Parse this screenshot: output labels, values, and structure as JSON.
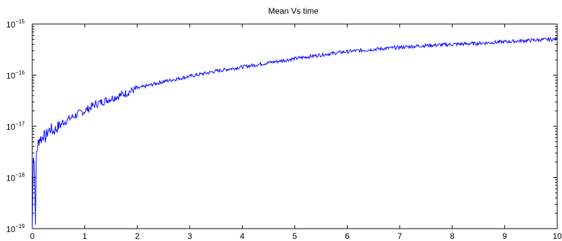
{
  "chart_data": {
    "type": "line",
    "title": "Mean Vs time",
    "xlabel": "",
    "ylabel": "",
    "y_scale": "log",
    "xlim": [
      0,
      10
    ],
    "ylim": [
      1e-19,
      1e-15
    ],
    "grid": false,
    "x_ticks": [
      0,
      1,
      2,
      3,
      4,
      5,
      6,
      7,
      8,
      9,
      10
    ],
    "x_tick_labels": [
      "0",
      "1",
      "2",
      "3",
      "4",
      "5",
      "6",
      "7",
      "8",
      "9",
      "10"
    ],
    "y_ticks": [
      1e-19,
      1e-18,
      1e-17,
      1e-16,
      1e-15
    ],
    "y_tick_labels": [
      {
        "base": "10",
        "exponent": "−19"
      },
      {
        "base": "10",
        "exponent": "−18"
      },
      {
        "base": "10",
        "exponent": "−17"
      },
      {
        "base": "10",
        "exponent": "−16"
      },
      {
        "base": "10",
        "exponent": "−15"
      }
    ],
    "series": [
      {
        "color": "#0000ff",
        "x": [
          0.0,
          0.02,
          0.04,
          0.06,
          0.08,
          0.1,
          0.12,
          0.15,
          0.18,
          0.2,
          0.25,
          0.3,
          0.35,
          0.4,
          0.5,
          0.6,
          0.7,
          0.8,
          0.9,
          1.0,
          1.2,
          1.5,
          1.8,
          2.0,
          2.5,
          3.0,
          3.5,
          4.0,
          4.5,
          5.0,
          5.5,
          6.0,
          6.5,
          7.0,
          7.5,
          8.0,
          8.5,
          9.0,
          9.5,
          10.0
        ],
        "y": [
          1e-19,
          3e-18,
          2e-18,
          1.5e-19,
          3e-18,
          4e-18,
          5e-18,
          6e-18,
          5.5e-18,
          7e-18,
          6e-18,
          8e-18,
          9e-18,
          8e-18,
          1e-17,
          1.2e-17,
          1.4e-17,
          1.6e-17,
          1.8e-17,
          2e-17,
          2.7e-17,
          3.5e-17,
          4.5e-17,
          5.5e-17,
          7.5e-17,
          9.5e-17,
          1.2e-16,
          1.45e-16,
          1.75e-16,
          2.1e-16,
          2.5e-16,
          2.9e-16,
          3.2e-16,
          3.5e-16,
          3.8e-16,
          4e-16,
          4.2e-16,
          4.5e-16,
          4.8e-16,
          5.1e-16
        ]
      }
    ]
  }
}
